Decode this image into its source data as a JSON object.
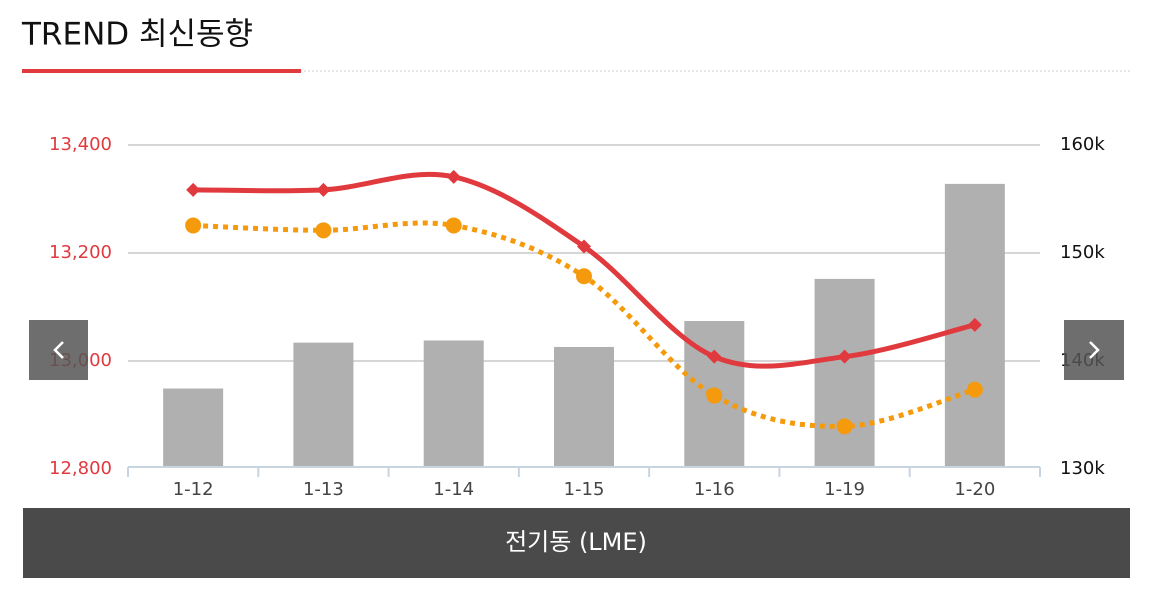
{
  "header": {
    "title": "TREND 최신동향"
  },
  "chart_data": {
    "type": "combo",
    "title": "전기동 (LME)",
    "categories": [
      "1-12",
      "1-13",
      "1-14",
      "1-15",
      "1-16",
      "1-19",
      "1-20"
    ],
    "series": [
      {
        "type": "bar",
        "axis": "y2",
        "color": "#b0b0b0",
        "values": [
          137450,
          141700,
          141900,
          141300,
          143700,
          147600,
          156400
        ]
      },
      {
        "type": "line",
        "color": "#f59a0c",
        "dash": "dotted",
        "marker": "circle",
        "values": [
          13251,
          13242,
          13251,
          13157,
          12936,
          12879,
          12947
        ]
      },
      {
        "type": "line",
        "color": "#e03a3e",
        "dash": "solid",
        "marker": "diamond",
        "values": [
          13317,
          13317,
          13341,
          13212,
          13008,
          13008,
          13067
        ]
      }
    ],
    "ylim": [
      12800,
      13400
    ],
    "yticks": [
      {
        "value": 12800,
        "label": "12,800"
      },
      {
        "value": 13000,
        "label": "13,000"
      },
      {
        "value": 13200,
        "label": "13,200"
      },
      {
        "value": 13400,
        "label": "13,400"
      }
    ],
    "ytick_color": "#e03a3e",
    "y2lim": [
      130000,
      160000
    ],
    "y2ticks": [
      {
        "value": 130000,
        "label": "130k"
      },
      {
        "value": 140000,
        "label": "140k"
      },
      {
        "value": 150000,
        "label": "150k"
      },
      {
        "value": 160000,
        "label": "160k"
      }
    ],
    "grid": true
  }
}
